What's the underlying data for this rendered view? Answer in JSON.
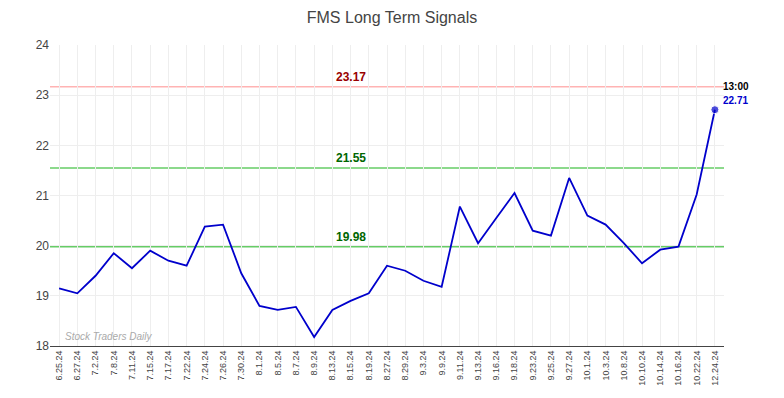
{
  "chart_data": {
    "type": "line",
    "title": "FMS Long Term Signals",
    "categories": [
      "6.25.24",
      "6.27.24",
      "7.2.24",
      "7.8.24",
      "7.11.24",
      "7.15.24",
      "7.17.24",
      "7.22.24",
      "7.24.24",
      "7.26.24",
      "7.30.24",
      "8.1.24",
      "8.5.24",
      "8.7.24",
      "8.9.24",
      "8.13.24",
      "8.15.24",
      "8.19.24",
      "8.27.24",
      "8.29.24",
      "9.3.24",
      "9.9.24",
      "9.11.24",
      "9.13.24",
      "9.16.24",
      "9.18.24",
      "9.23.24",
      "9.25.24",
      "9.27.24",
      "10.1.24",
      "10.3.24",
      "10.8.24",
      "10.10.24",
      "10.14.24",
      "10.16.24",
      "10.22.24",
      "12.24.24"
    ],
    "values": [
      19.15,
      19.05,
      19.4,
      19.85,
      19.55,
      19.9,
      19.7,
      19.6,
      20.38,
      20.42,
      19.45,
      18.8,
      18.72,
      18.78,
      18.18,
      18.72,
      18.9,
      19.05,
      19.6,
      19.5,
      19.3,
      19.18,
      20.78,
      20.05,
      20.55,
      21.05,
      20.3,
      20.2,
      21.35,
      20.6,
      20.42,
      20.05,
      19.65,
      19.92,
      19.98,
      21.02,
      22.71
    ],
    "color": "#0000cc",
    "hlines": [
      {
        "value": 23.17,
        "label": "23.17",
        "color": "#ffb3b3",
        "label_color": "#990000"
      },
      {
        "value": 21.55,
        "label": "21.55",
        "color": "#66cc66",
        "label_color": "#006600"
      },
      {
        "value": 19.98,
        "label": "19.98",
        "color": "#66cc66",
        "label_color": "#006600"
      }
    ],
    "last_point_labels": [
      {
        "text": "13:00",
        "color": "#000000"
      },
      {
        "text": "22.71",
        "color": "#0000cc"
      }
    ],
    "watermark": {
      "text": "Stock Traders Daily",
      "color": "#aaaaaa"
    },
    "ylim": [
      18,
      24
    ],
    "yticks": [
      18,
      19,
      20,
      21,
      22,
      23,
      24
    ],
    "grid": true
  }
}
